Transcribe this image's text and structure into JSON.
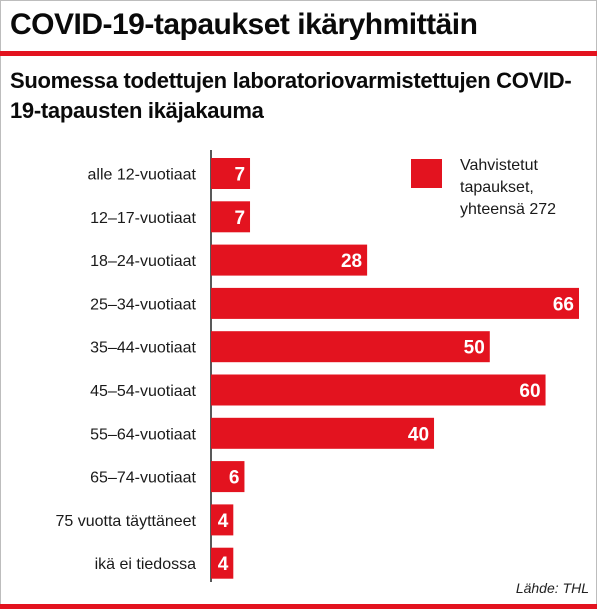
{
  "header": {
    "title": "COVID-19-tapaukset ikäryhmittäin",
    "subtitle": "Suomessa todettujen laboratoriovarmistettujen COVID-19-tapausten ikäjakauma"
  },
  "source": "Lähde: THL",
  "colors": {
    "accent": "#e3131f",
    "text": "#111111",
    "bar_label": "#ffffff"
  },
  "chart_data": {
    "type": "bar",
    "orientation": "horizontal",
    "title": "",
    "xlabel": "",
    "ylabel": "",
    "categories": [
      "alle 12-vuotiaat",
      "12–17-vuotiaat",
      "18–24-vuotiaat",
      "25–34-vuotiaat",
      "35–44-vuotiaat",
      "45–54-vuotiaat",
      "55–64-vuotiaat",
      "65–74-vuotiaat",
      "75 vuotta täyttäneet",
      "ikä ei tiedossa"
    ],
    "values": [
      7,
      7,
      28,
      66,
      50,
      60,
      40,
      6,
      4,
      4
    ],
    "xlim": [
      0,
      66
    ],
    "grid": false,
    "legend": {
      "position": "top-right",
      "label": "Vahvistetut tapaukset, yhteensä 272",
      "lines": [
        "Vahvistetut",
        "tapaukset,",
        "yhteensä 272"
      ]
    }
  }
}
